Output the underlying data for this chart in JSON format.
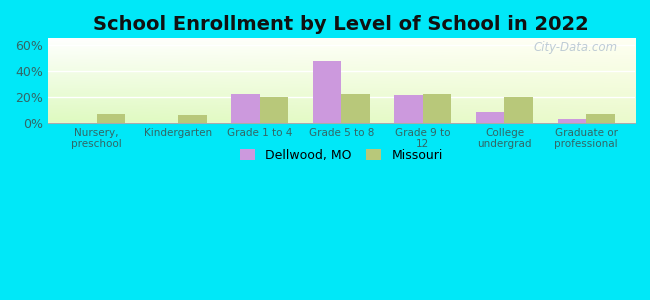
{
  "title": "School Enrollment by Level of School in 2022",
  "categories": [
    "Nursery,\npreschool",
    "Kindergarten",
    "Grade 1 to 4",
    "Grade 5 to 8",
    "Grade 9 to\n12",
    "College\nundergrad",
    "Graduate or\nprofessional"
  ],
  "dellwood": [
    0.0,
    0.0,
    22.0,
    47.5,
    21.0,
    8.0,
    3.0
  ],
  "missouri": [
    7.0,
    6.0,
    20.0,
    22.0,
    22.0,
    19.5,
    6.5
  ],
  "dellwood_color": "#cc99dd",
  "missouri_color": "#b8c87a",
  "ylim": [
    0,
    65
  ],
  "yticks": [
    0,
    20,
    40,
    60
  ],
  "ytick_labels": [
    "0%",
    "20%",
    "40%",
    "60%"
  ],
  "bg_outer": "#00e8f8",
  "bar_width": 0.35,
  "title_fontsize": 14,
  "legend_label_dellwood": "Dellwood, MO",
  "legend_label_missouri": "Missouri",
  "watermark": "City-Data.com"
}
